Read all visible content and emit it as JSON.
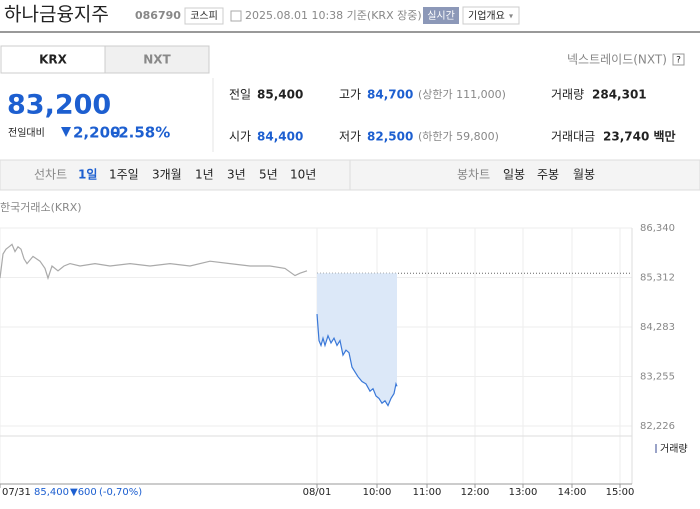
{
  "header": {
    "name": "하나금융지주",
    "code": "086790",
    "market": "코스피",
    "timestamp": "2025.08.01 10:38 기준(KRX 장중)",
    "realtime": "실시간",
    "company_info": "기업개요"
  },
  "tabs": {
    "krx": "KRX",
    "nxt": "NXT",
    "nextrade": "넥스트레이드(NXT)",
    "help": "?"
  },
  "quote": {
    "price": "83,200",
    "change_label": "전일대비",
    "change": "2,200",
    "change_pct": "-2.58%",
    "stats": [
      {
        "label": "전일",
        "value": "85,400"
      },
      {
        "label": "고가",
        "value": "84,700",
        "note": "(상한가 111,000)"
      },
      {
        "label": "거래량",
        "value": "284,301"
      },
      {
        "label": "시가",
        "value": "84,400"
      },
      {
        "label": "저가",
        "value": "82,500",
        "note": "(하한가 59,800)"
      },
      {
        "label": "거래대금",
        "value": "23,740 백만"
      }
    ]
  },
  "chart_tabs": {
    "line_label": "선차트",
    "line_periods": [
      "1일",
      "1주일",
      "3개월",
      "1년",
      "3년",
      "5년",
      "10년"
    ],
    "candle_label": "봉차트",
    "candle_periods": [
      "일봉",
      "주봉",
      "월봉"
    ]
  },
  "chart_data": {
    "type": "line",
    "source": "한국거래소(KRX)",
    "volume_label": "거래량",
    "grid": true,
    "xlim": [
      0,
      632
    ],
    "ylim": [
      82226,
      86340
    ],
    "yticks": [
      {
        "value": 86340,
        "label": "86,340"
      },
      {
        "value": 85312,
        "label": "85,312"
      },
      {
        "value": 84283,
        "label": "84,283"
      },
      {
        "value": 83255,
        "label": "83,255"
      },
      {
        "value": 82226,
        "label": "82,226"
      }
    ],
    "xticks": [
      {
        "value": 0,
        "label": "07/31"
      },
      {
        "value": 317,
        "label": "08/01"
      },
      {
        "value": 377,
        "label": "10:00"
      },
      {
        "value": 427,
        "label": "11:00"
      },
      {
        "value": 475,
        "label": "12:00"
      },
      {
        "value": 523,
        "label": "13:00"
      },
      {
        "value": 572,
        "label": "14:00"
      },
      {
        "value": 620,
        "label": "15:00"
      }
    ],
    "annotation": {
      "value": 85400,
      "label": "85,400",
      "change": "▼600",
      "change_pct": "(-0,70%)"
    },
    "series": [
      {
        "color": "#aaaaaa",
        "x": [
          0,
          3,
          6,
          9,
          12,
          15,
          18,
          21,
          24,
          27,
          33,
          40,
          45,
          48,
          52,
          58,
          64,
          70,
          80,
          95,
          110,
          130,
          150,
          170,
          190,
          210,
          230,
          250,
          270,
          285,
          295,
          300,
          307
        ],
        "values": [
          85300,
          85800,
          85900,
          85950,
          86000,
          85850,
          85950,
          85900,
          85700,
          85600,
          85750,
          85650,
          85500,
          85300,
          85550,
          85450,
          85550,
          85600,
          85550,
          85600,
          85550,
          85600,
          85550,
          85600,
          85550,
          85650,
          85600,
          85550,
          85550,
          85500,
          85350,
          85400,
          85450
        ]
      },
      {
        "color": "#3a78d8",
        "fill": "#dce8f8",
        "x": [
          317,
          319,
          321,
          323,
          325,
          328,
          331,
          334,
          337,
          340,
          343,
          346,
          349,
          352,
          355,
          358,
          362,
          366,
          370,
          373,
          376,
          379,
          382,
          385,
          388,
          391,
          394,
          396,
          397
        ],
        "values": [
          84550,
          84000,
          83900,
          84050,
          83900,
          84100,
          83950,
          84050,
          83900,
          84000,
          83700,
          83800,
          83750,
          83450,
          83350,
          83250,
          83150,
          83100,
          82950,
          83000,
          82850,
          82800,
          82700,
          82750,
          82650,
          82800,
          82900,
          83100,
          83050
        ]
      }
    ]
  }
}
